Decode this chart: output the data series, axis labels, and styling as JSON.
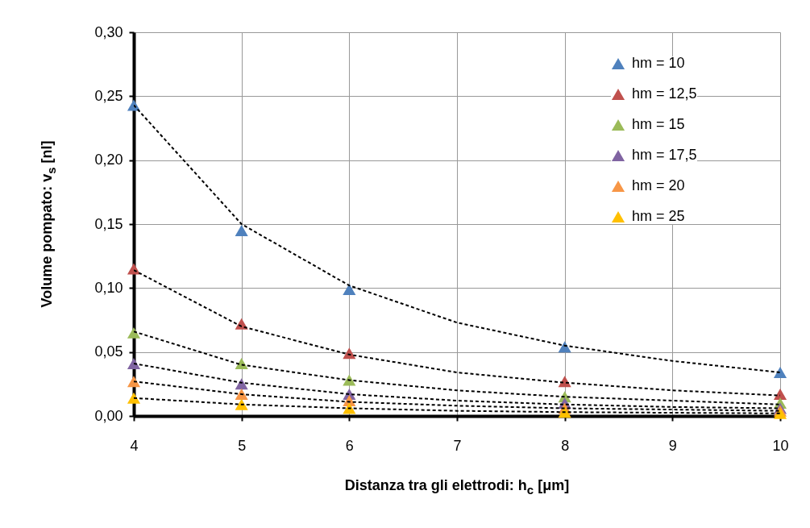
{
  "chart_data": {
    "type": "scatter",
    "xlabel": "Distanza tra gli elettrodi: h$_{c}$ [μm]",
    "ylabel": "Volume pompato: v$_{s}$ [nl]",
    "x": [
      4,
      5,
      6,
      8,
      10
    ],
    "xlim": [
      4,
      10
    ],
    "xticks": [
      4,
      5,
      6,
      7,
      8,
      9,
      10
    ],
    "ylim": [
      0,
      0.3
    ],
    "yticks": [
      {
        "value": 0,
        "label": "0,00"
      },
      {
        "value": 0.05,
        "label": "0,05"
      },
      {
        "value": 0.1,
        "label": "0,10"
      },
      {
        "value": 0.15,
        "label": "0,15"
      },
      {
        "value": 0.2,
        "label": "0,20"
      },
      {
        "value": 0.25,
        "label": "0,25"
      },
      {
        "value": 0.3,
        "label": "0,30"
      }
    ],
    "grid": true,
    "legend": "top right",
    "marker": "triangle",
    "series": [
      {
        "type": "line",
        "marker": "none",
        "color": "#000000",
        "line_style": "dashed",
        "x": [
          4,
          5,
          6,
          7,
          8,
          9,
          10
        ],
        "values": [
          0.243,
          0.15,
          0.102,
          0.073,
          0.055,
          0.043,
          0.034
        ]
      },
      {
        "type": "line",
        "marker": "none",
        "color": "#000000",
        "line_style": "dashed",
        "x": [
          4,
          5,
          6,
          7,
          8,
          9,
          10
        ],
        "values": [
          0.114,
          0.07,
          0.048,
          0.034,
          0.026,
          0.02,
          0.016
        ]
      },
      {
        "type": "line",
        "marker": "none",
        "color": "#000000",
        "line_style": "dashed",
        "x": [
          4,
          5,
          6,
          7,
          8,
          9,
          10
        ],
        "values": [
          0.066,
          0.04,
          0.028,
          0.02,
          0.015,
          0.012,
          0.009
        ]
      },
      {
        "type": "line",
        "marker": "none",
        "color": "#000000",
        "line_style": "dashed",
        "x": [
          4,
          5,
          6,
          7,
          8,
          9,
          10
        ],
        "values": [
          0.041,
          0.026,
          0.017,
          0.012,
          0.009,
          0.007,
          0.006
        ]
      },
      {
        "type": "line",
        "marker": "none",
        "color": "#000000",
        "line_style": "dashed",
        "x": [
          4,
          5,
          6,
          7,
          8,
          9,
          10
        ],
        "values": [
          0.027,
          0.017,
          0.011,
          0.008,
          0.006,
          0.005,
          0.004
        ]
      },
      {
        "type": "line",
        "marker": "none",
        "color": "#000000",
        "line_style": "dashed",
        "x": [
          4,
          5,
          6,
          7,
          8,
          9,
          10
        ],
        "values": [
          0.014,
          0.009,
          0.006,
          0.004,
          0.003,
          0.0025,
          0.002
        ]
      },
      {
        "name": "hm = 10",
        "color": "#4f81bd",
        "values": [
          0.243,
          0.145,
          0.099,
          0.054,
          0.034
        ]
      },
      {
        "name": "hm = 12,5",
        "color": "#c0504d",
        "values": [
          0.115,
          0.072,
          0.049,
          0.027,
          0.017
        ]
      },
      {
        "name": "hm = 15",
        "color": "#9bbb59",
        "values": [
          0.065,
          0.041,
          0.028,
          0.015,
          0.01
        ]
      },
      {
        "name": "hm = 17,5",
        "color": "#8064a2",
        "values": [
          0.041,
          0.025,
          0.017,
          0.01,
          0.006
        ]
      },
      {
        "name": "hm = 20",
        "color": "#f79646",
        "values": [
          0.027,
          0.017,
          0.012,
          0.006,
          0.004
        ]
      },
      {
        "name": "hm = 25",
        "color": "#ffc000",
        "values": [
          0.014,
          0.009,
          0.006,
          0.003,
          0.002
        ]
      }
    ]
  }
}
